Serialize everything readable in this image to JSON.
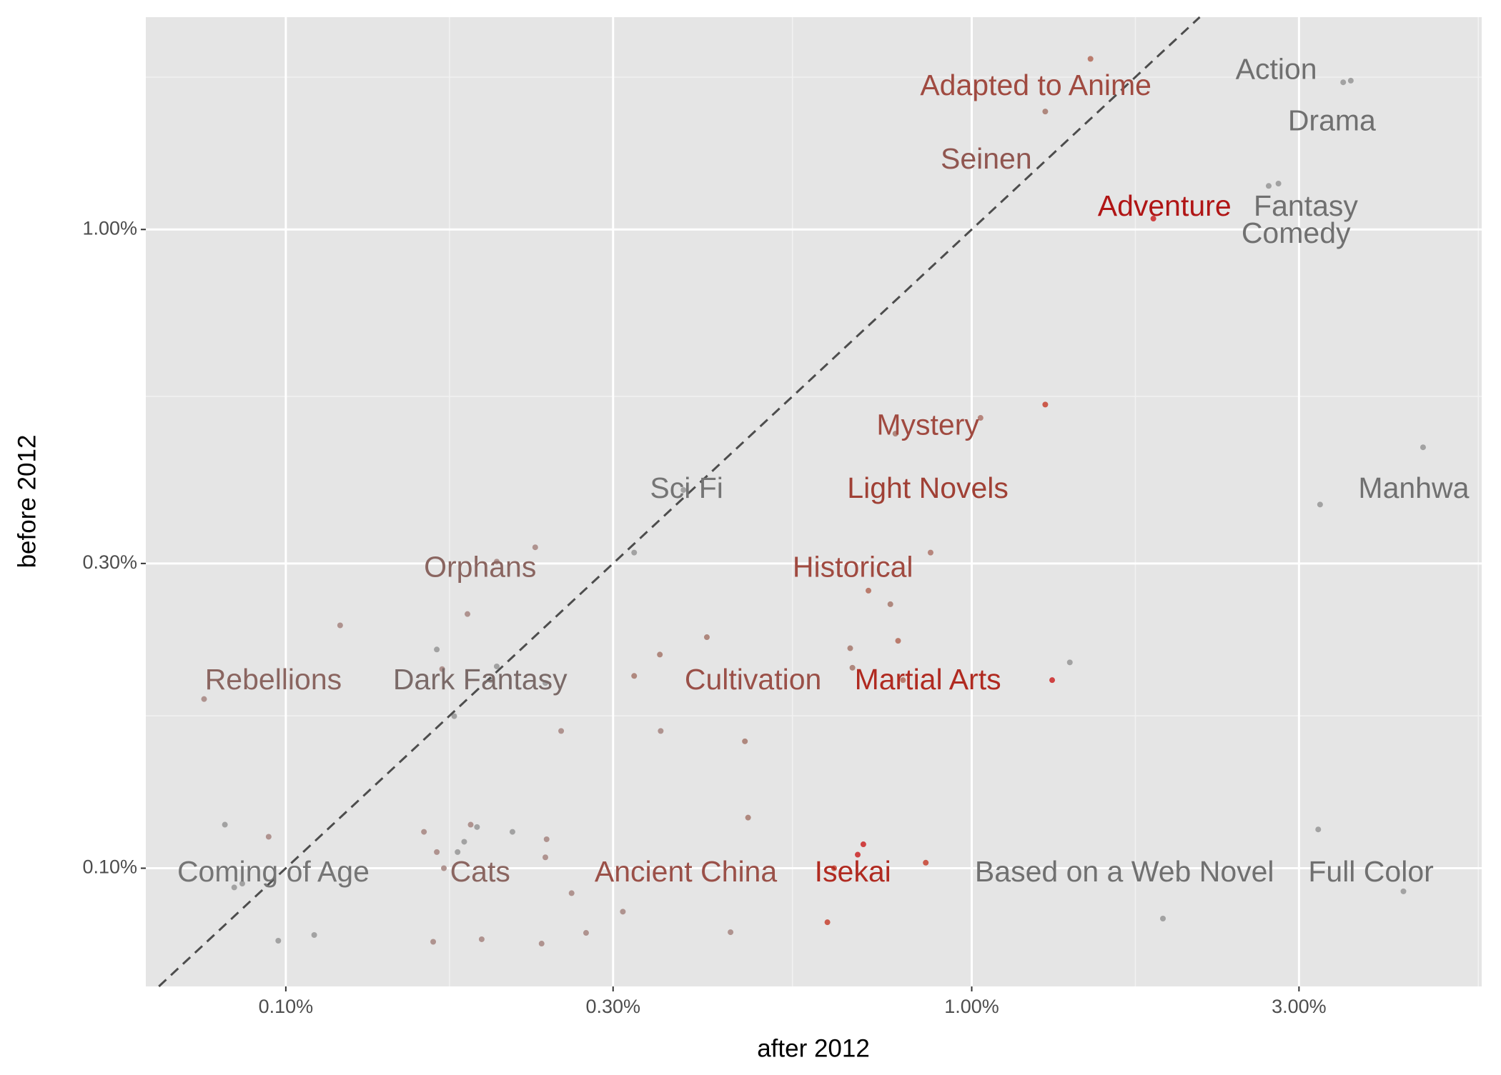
{
  "chart_data": {
    "type": "scatter",
    "xlabel": "after 2012",
    "ylabel": "before 2012",
    "xscale": "log",
    "yscale": "log",
    "grid": true,
    "identity_line": true,
    "xlim": [
      0.0625,
      5.54
    ],
    "ylim": [
      0.0653,
      2.15
    ],
    "xticks": [
      {
        "value": 0.1,
        "label": "0.10%"
      },
      {
        "value": 0.3,
        "label": "0.30%"
      },
      {
        "value": 1,
        "label": "1.00%"
      },
      {
        "value": 3,
        "label": "3.00%"
      }
    ],
    "yticks": [
      {
        "value": 0.1,
        "label": "0.10%"
      },
      {
        "value": 0.3,
        "label": "0.30%"
      },
      {
        "value": 1,
        "label": "1.00%"
      }
    ],
    "series": [
      {
        "x": [
          1.49,
          1.28,
          3.48,
          3.57,
          2.71,
          2.8,
          1.84,
          1.28,
          1.03,
          0.774,
          4.55,
          3.22,
          0.38,
          0.231,
          0.322,
          0.871,
          0.203,
          0.707,
          0.761,
          0.184,
          0.12,
          0.411,
          0.781,
          0.166,
          0.665,
          0.351,
          1.39,
          0.203,
          0.169,
          0.67,
          0.322,
          0.794,
          1.31,
          0.199,
          0.239,
          0.076,
          0.176,
          0.252,
          0.352,
          0.467,
          0.472,
          0.0815,
          0.186,
          0.159,
          3.2,
          0.19,
          0.214,
          0.0944,
          0.24,
          0.182,
          0.695,
          0.166,
          0.178,
          0.682,
          0.239,
          0.857,
          0.63,
          0.17,
          4.26,
          0.261,
          0.0841,
          0.0864,
          0.31,
          1.9,
          0.616,
          0.445,
          0.274,
          0.11,
          0.0975,
          0.193,
          0.164,
          0.236
        ],
        "values": [
          1.85,
          1.53,
          1.7,
          1.71,
          1.17,
          1.18,
          1.04,
          0.532,
          0.507,
          0.479,
          0.456,
          0.371,
          0.391,
          0.318,
          0.312,
          0.312,
          0.302,
          0.272,
          0.259,
          0.25,
          0.24,
          0.23,
          0.227,
          0.22,
          0.221,
          0.216,
          0.21,
          0.207,
          0.205,
          0.206,
          0.2,
          0.197,
          0.197,
          0.197,
          0.195,
          0.184,
          0.173,
          0.164,
          0.164,
          0.158,
          0.12,
          0.117,
          0.117,
          0.114,
          0.115,
          0.116,
          0.114,
          0.112,
          0.111,
          0.11,
          0.109,
          0.106,
          0.106,
          0.105,
          0.104,
          0.102,
          0.1,
          0.1,
          0.092,
          0.0914,
          0.0933,
          0.0946,
          0.0855,
          0.0834,
          0.0823,
          0.0794,
          0.0792,
          0.0786,
          0.077,
          0.0774,
          0.0767,
          0.0762
        ],
        "colors": [
          "#b5705f",
          "#a87d72",
          "#9a9a9a",
          "#9a9a9a",
          "#9a9a9a",
          "#9a9a9a",
          "#cc3030",
          "#c84a3a",
          "#b07a70",
          "#a87d72",
          "#9a9a9a",
          "#9a9a9a",
          "#9a9a9a",
          "#a88a85",
          "#9a9a9a",
          "#b07a70",
          "#a88a85",
          "#b5705f",
          "#a87d72",
          "#a88a85",
          "#a88a85",
          "#a87d72",
          "#b5705f",
          "#9a9a9a",
          "#a87d72",
          "#a87d72",
          "#9a9a9a",
          "#9a9a9a",
          "#a88a85",
          "#a87d72",
          "#a87d72",
          "#b5705f",
          "#cc3030",
          "#9a9a9a",
          "#9a9a9a",
          "#a88a85",
          "#9a9a9a",
          "#a88a85",
          "#a88a85",
          "#a87d72",
          "#a87d72",
          "#9a9a9a",
          "#a88a85",
          "#a88a85",
          "#9a9a9a",
          "#9a9a9a",
          "#9a9a9a",
          "#a88a85",
          "#a88a85",
          "#9a9a9a",
          "#cc3030",
          "#a88a85",
          "#9a9a9a",
          "#cc3030",
          "#a88a85",
          "#c84a3a",
          "#c84a3a",
          "#a88a85",
          "#9a9a9a",
          "#a88a85",
          "#9a9a9a",
          "#9a9a9a",
          "#a88a85",
          "#9a9a9a",
          "#c84a3a",
          "#a88a85",
          "#a88a85",
          "#9a9a9a",
          "#9a9a9a",
          "#a88a85",
          "#a88a85",
          "#a88a85"
        ]
      }
    ],
    "annotations": [
      {
        "text": "Adapted to Anime",
        "x": 1.24,
        "y": 1.67,
        "color": "#a04a40"
      },
      {
        "text": "Action",
        "x": 2.78,
        "y": 1.77,
        "color": "#707070"
      },
      {
        "text": "Drama",
        "x": 3.35,
        "y": 1.47,
        "color": "#707070"
      },
      {
        "text": "Seinen",
        "x": 1.05,
        "y": 1.28,
        "color": "#905650"
      },
      {
        "text": "Adventure",
        "x": 1.91,
        "y": 1.08,
        "color": "#b01515"
      },
      {
        "text": "Fantasy",
        "x": 3.07,
        "y": 1.08,
        "color": "#707070"
      },
      {
        "text": "Comedy",
        "x": 2.97,
        "y": 0.98,
        "color": "#707070"
      },
      {
        "text": "Mystery",
        "x": 0.863,
        "y": 0.491,
        "color": "#a04a40"
      },
      {
        "text": "Sci Fi",
        "x": 0.384,
        "y": 0.391,
        "color": "#757575"
      },
      {
        "text": "Light Novels",
        "x": 0.863,
        "y": 0.391,
        "color": "#a04035"
      },
      {
        "text": "Manhwa",
        "x": 4.41,
        "y": 0.391,
        "color": "#707070"
      },
      {
        "text": "Orphans",
        "x": 0.192,
        "y": 0.294,
        "color": "#8a6560"
      },
      {
        "text": "Historical",
        "x": 0.671,
        "y": 0.294,
        "color": "#a04a40"
      },
      {
        "text": "Rebellions",
        "x": 0.0959,
        "y": 0.196,
        "color": "#8a6560"
      },
      {
        "text": "Dark Fantasy",
        "x": 0.192,
        "y": 0.196,
        "color": "#7a6a68"
      },
      {
        "text": "Cultivation",
        "x": 0.48,
        "y": 0.196,
        "color": "#9a5048"
      },
      {
        "text": "Martial Arts",
        "x": 0.863,
        "y": 0.196,
        "color": "#b02a20"
      },
      {
        "text": "Coming of Age",
        "x": 0.0959,
        "y": 0.098,
        "color": "#757575"
      },
      {
        "text": "Cats",
        "x": 0.192,
        "y": 0.098,
        "color": "#8a6560"
      },
      {
        "text": "Ancient China",
        "x": 0.383,
        "y": 0.098,
        "color": "#9a5048"
      },
      {
        "text": "Isekai",
        "x": 0.671,
        "y": 0.098,
        "color": "#b02a20"
      },
      {
        "text": "Based on a Web Novel",
        "x": 1.67,
        "y": 0.098,
        "color": "#707070"
      },
      {
        "text": "Full Color",
        "x": 3.82,
        "y": 0.098,
        "color": "#707070"
      }
    ]
  }
}
